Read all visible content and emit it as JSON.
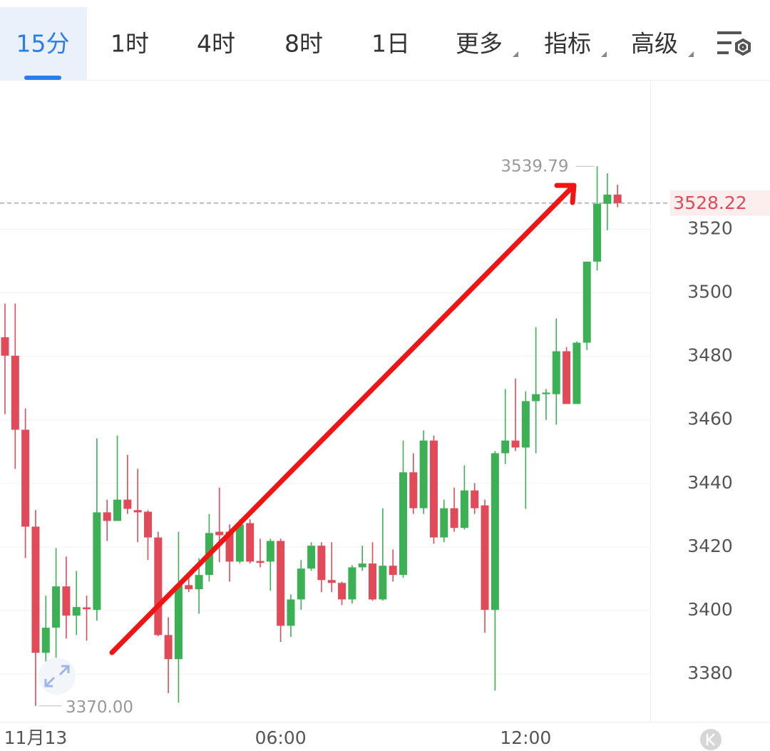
{
  "tabs": [
    {
      "label": "15分",
      "dropdown": false
    },
    {
      "label": "1时",
      "dropdown": false
    },
    {
      "label": "4时",
      "dropdown": false
    },
    {
      "label": "8时",
      "dropdown": false
    },
    {
      "label": "1日",
      "dropdown": false
    },
    {
      "label": "更多",
      "dropdown": true
    },
    {
      "label": "指标",
      "dropdown": true
    },
    {
      "label": "高级",
      "dropdown": true
    }
  ],
  "active_tab_index": 0,
  "chart_data": {
    "type": "candlestick",
    "categories": [
      null,
      null,
      null,
      "11月13",
      null,
      null,
      null,
      null,
      null,
      null,
      null,
      null,
      null,
      null,
      null,
      null,
      null,
      null,
      null,
      null,
      null,
      null,
      null,
      null,
      null,
      null,
      null,
      "06:00",
      null,
      null,
      null,
      null,
      null,
      null,
      null,
      null,
      null,
      null,
      null,
      null,
      null,
      null,
      null,
      null,
      null,
      null,
      null,
      null,
      null,
      null,
      null,
      "12:00",
      null,
      null,
      null,
      null,
      null,
      null,
      null,
      null,
      null
    ],
    "open": [
      3486,
      3480.2,
      3456.9,
      3426.4,
      3386.7,
      3394.6,
      3407.6,
      3398.4,
      3401,
      3400.2,
      3430.9,
      3428.2,
      3434.9,
      3431.6,
      3431.1,
      3423,
      3392.3,
      3384.7,
      3408,
      3406.7,
      3411.2,
      3424.8,
      3424.8,
      3415.4,
      3427.5,
      3415.6,
      3415.4,
      3421.9,
      3395.2,
      3403.5,
      3413.2,
      3420.4,
      3409.6,
      3408.7,
      3403.5,
      3413.6,
      3414.8,
      3403.5,
      3414.1,
      3411.2,
      3443.5,
      3432.2,
      3453.5,
      3423,
      3432.2,
      3426,
      3437.8,
      3433.1,
      3400.2,
      3449.5,
      3453.5,
      3451.3,
      3465.9,
      3468.1,
      3468.1,
      3481.6,
      3465,
      3484.3,
      3509.8,
      3528,
      3530.9
    ],
    "high": [
      3496.6,
      3496.6,
      3463.6,
      3431.6,
      3404.7,
      3419.7,
      3417,
      3412.5,
      3404.7,
      3454.2,
      3434.9,
      3455.1,
      3449,
      3444.6,
      3431.6,
      3424.8,
      3397.9,
      3424.8,
      3410.3,
      3416.5,
      3430.4,
      3438.7,
      3427.1,
      3428.7,
      3428.7,
      3422.6,
      3422.6,
      3422.6,
      3405.1,
      3415.9,
      3421.5,
      3421.5,
      3421.5,
      3409.1,
      3414.3,
      3420.4,
      3421.5,
      3432.2,
      3419.2,
      3453.5,
      3449.5,
      3456.7,
      3455.1,
      3434.9,
      3438.7,
      3445.7,
      3440.1,
      3434.9,
      3450.2,
      3469.7,
      3473,
      3469,
      3489.2,
      3469.7,
      3491.9,
      3482.9,
      3484.7,
      3509.8,
      3539.79,
      3537.6,
      3534
    ],
    "low": [
      3461.8,
      3444.6,
      3416.5,
      3370,
      3383.4,
      3380,
      3391.2,
      3392.3,
      3390.5,
      3396.8,
      3421.9,
      3428.2,
      3430.4,
      3421.5,
      3415.9,
      3391.9,
      3374,
      3371,
      3405.8,
      3399,
      3409.1,
      3415.2,
      3409.1,
      3414.8,
      3414.8,
      3413.6,
      3406.2,
      3390.1,
      3391.7,
      3400.2,
      3412.5,
      3405.8,
      3405.8,
      3401.7,
      3402.2,
      3412.5,
      3403.1,
      3403.1,
      3409.1,
      3410.3,
      3430.4,
      3430.4,
      3421,
      3421.5,
      3424.8,
      3425.5,
      3430.4,
      3393,
      3374.8,
      3446.1,
      3450.2,
      3432,
      3449.5,
      3460,
      3458.5,
      3465,
      3465,
      3482,
      3507,
      3519.7,
      3526.9
    ],
    "close": [
      3480.2,
      3456.9,
      3426.4,
      3386.7,
      3394.6,
      3407.6,
      3398.4,
      3401.1,
      3400.4,
      3430.9,
      3428.2,
      3434.9,
      3432,
      3430.9,
      3423,
      3392.3,
      3384.7,
      3408,
      3406.7,
      3411.2,
      3424.4,
      3423.7,
      3415.4,
      3427.1,
      3415.4,
      3415,
      3421.9,
      3395.2,
      3403.5,
      3413.2,
      3420.4,
      3409.6,
      3408.7,
      3403.5,
      3413.6,
      3414.8,
      3403.5,
      3414.1,
      3411.2,
      3443.5,
      3432.2,
      3453.5,
      3423,
      3432.2,
      3426,
      3437.8,
      3432.2,
      3400.2,
      3449.5,
      3453.5,
      3451.3,
      3465.9,
      3468.1,
      3468.6,
      3481.6,
      3465,
      3484.3,
      3509.8,
      3528,
      3530.9,
      3528.22
    ],
    "up_color": "#3cb054",
    "down_color": "#e04a59",
    "ylim": [
      3365,
      3567
    ],
    "yticks": [
      3380,
      3400,
      3420,
      3440,
      3460,
      3480,
      3500,
      3520
    ],
    "grid": true,
    "current_price": {
      "value": 3528.22,
      "label": "3528.22"
    },
    "high_annotation": {
      "value": 3539.79,
      "label": "3539.79"
    },
    "low_annotation": {
      "value": 3370,
      "label": "3370.00"
    }
  }
}
